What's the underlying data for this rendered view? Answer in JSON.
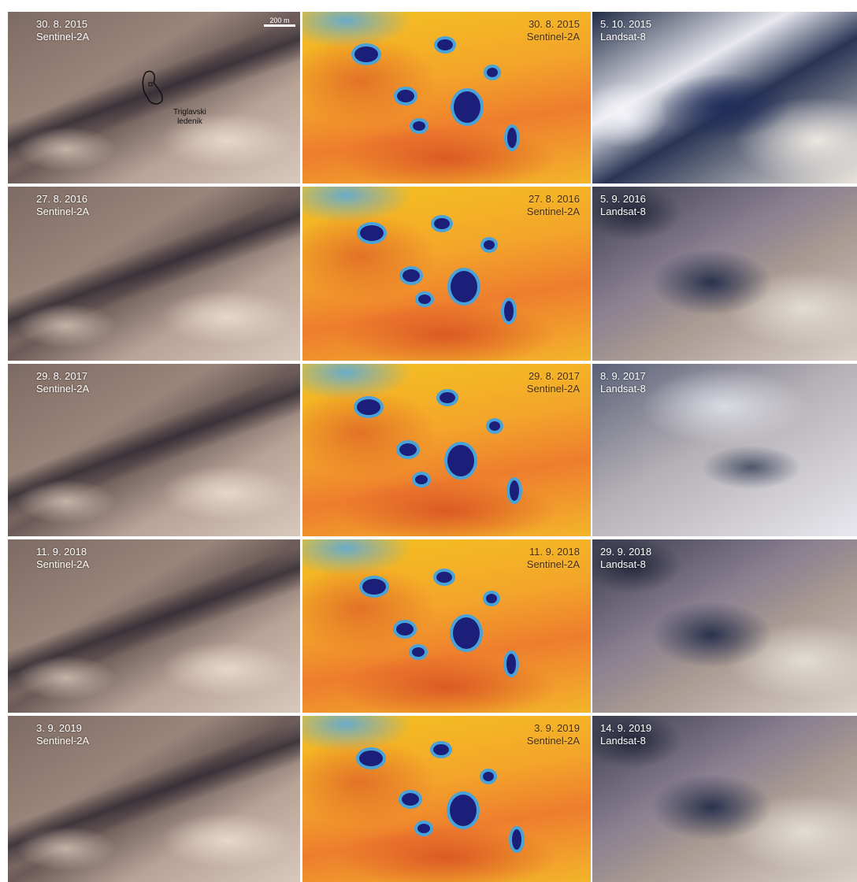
{
  "panels": [
    [
      {
        "date": "30. 8. 2015",
        "sensor": "Sentinel-2A"
      },
      {
        "date": "30. 8. 2015",
        "sensor": "Sentinel-2A"
      },
      {
        "date": "5. 10. 2015",
        "sensor": "Landsat-8"
      }
    ],
    [
      {
        "date": "27. 8. 2016",
        "sensor": "Sentinel-2A"
      },
      {
        "date": "27. 8. 2016",
        "sensor": "Sentinel-2A"
      },
      {
        "date": "5. 9. 2016",
        "sensor": "Landsat-8"
      }
    ],
    [
      {
        "date": "29. 8. 2017",
        "sensor": "Sentinel-2A"
      },
      {
        "date": "29. 8. 2017",
        "sensor": "Sentinel-2A"
      },
      {
        "date": "8. 9. 2017",
        "sensor": "Landsat-8"
      }
    ],
    [
      {
        "date": "11. 9. 2018",
        "sensor": "Sentinel-2A"
      },
      {
        "date": "11. 9. 2018",
        "sensor": "Sentinel-2A"
      },
      {
        "date": "29. 9. 2018",
        "sensor": "Landsat-8"
      }
    ],
    [
      {
        "date": "3. 9. 2019",
        "sensor": "Sentinel-2A"
      },
      {
        "date": "3. 9. 2019",
        "sensor": "Sentinel-2A"
      },
      {
        "date": "14. 9. 2019",
        "sensor": "Landsat-8"
      }
    ]
  ],
  "scale_bar": "200 m",
  "annotation": [
    "Triglavski",
    "ledenik"
  ]
}
